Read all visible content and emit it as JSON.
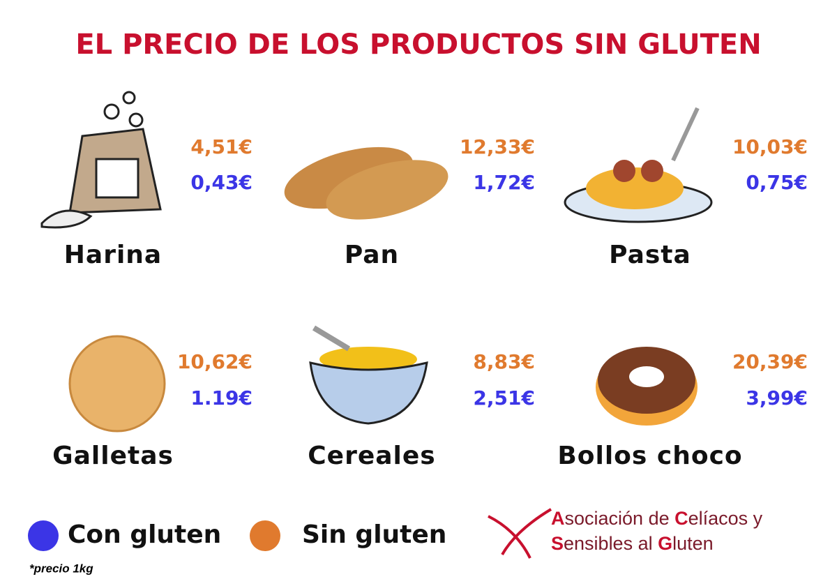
{
  "header": {
    "title": "EL PRECIO DE LOS PRODUCTOS SIN GLUTEN"
  },
  "items": [
    {
      "name": "Harina",
      "sin_gluten": "4,51€",
      "con_gluten": "0,43€"
    },
    {
      "name": "Pan",
      "sin_gluten": "12,33€",
      "con_gluten": "1,72€"
    },
    {
      "name": "Pasta",
      "sin_gluten": "10,03€",
      "con_gluten": "0,75€"
    },
    {
      "name": "Galletas",
      "sin_gluten": "10,62€",
      "con_gluten": "1.19€"
    },
    {
      "name": "Cereales",
      "sin_gluten": "8,83€",
      "con_gluten": "2,51€"
    },
    {
      "name": "Bollos choco",
      "sin_gluten": "20,39€",
      "con_gluten": "3,99€"
    }
  ],
  "legend": [
    {
      "label": "Con gluten",
      "color": "#3b35e6"
    },
    {
      "label": "Sin gluten",
      "color": "#e07a2e"
    }
  ],
  "footnote": "*precio 1kg",
  "logo": {
    "lines": [
      [
        "A",
        "sociación de ",
        "C",
        "elíacos y"
      ],
      [
        "S",
        "ensibles al ",
        "G",
        "luten"
      ]
    ]
  }
}
